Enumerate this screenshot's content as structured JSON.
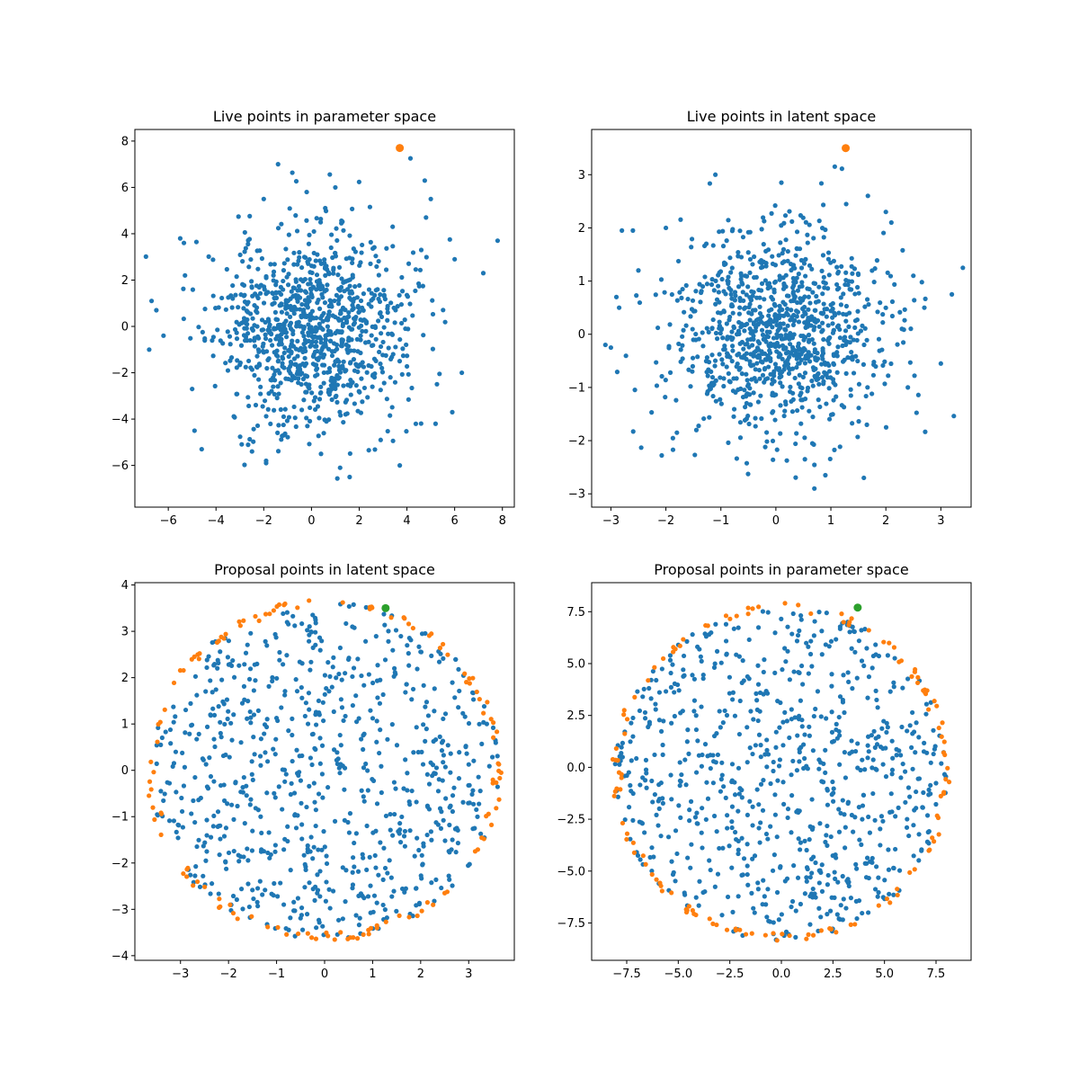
{
  "figure": {
    "width": 1200,
    "height": 1200
  },
  "chart_data": [
    {
      "type": "scatter",
      "title": "Live points in parameter space",
      "xlabel": "",
      "ylabel": "",
      "xlim": [
        -7.4,
        8.5
      ],
      "ylim": [
        -7.8,
        8.5
      ],
      "xticks": [
        -6,
        -4,
        -2,
        0,
        2,
        4,
        6,
        8
      ],
      "yticks": [
        -6,
        -4,
        -2,
        0,
        2,
        4,
        6,
        8
      ],
      "grid": false,
      "cloud": {
        "count": 1000,
        "sigma_x": 2.0,
        "sigma_y": 2.1,
        "seed": 11,
        "color": "#1f77b4"
      },
      "series": [
        {
          "color": "#1f77b4",
          "x": [
            -6.7,
            -6.5,
            -6.2,
            -6.8,
            -5.5,
            -5.3,
            -5.0,
            -4.9,
            -4.6,
            7.8,
            7.2,
            6.0,
            6.3,
            5.9,
            5.0,
            5.2,
            4.8,
            4.6,
            1.2,
            1.0,
            -0.2,
            -2.0,
            -1.9,
            1.6,
            2.9,
            3.7,
            -1.4,
            -1.9,
            0.4
          ],
          "y": [
            1.1,
            0.7,
            -0.4,
            -1.0,
            3.8,
            2.2,
            -2.7,
            -4.5,
            -5.3,
            3.7,
            2.3,
            2.9,
            -2.0,
            -3.7,
            5.5,
            -4.2,
            4.7,
            3.3,
            -6.1,
            6.0,
            5.8,
            5.5,
            -5.8,
            -6.5,
            -4.9,
            -6.0,
            7.0,
            -5.9,
            -5.5
          ]
        },
        {
          "color": "#ff7f0e",
          "x": [
            3.7
          ],
          "y": [
            7.7
          ]
        }
      ]
    },
    {
      "type": "scatter",
      "title": "Live points in latent space",
      "xlabel": "",
      "ylabel": "",
      "xlim": [
        -3.35,
        3.55
      ],
      "ylim": [
        -3.25,
        3.85
      ],
      "xticks": [
        -3,
        -2,
        -1,
        0,
        1,
        2,
        3
      ],
      "yticks": [
        -3,
        -2,
        -1,
        0,
        1,
        2,
        3
      ],
      "grid": false,
      "cloud": {
        "count": 1000,
        "sigma_x": 0.95,
        "sigma_y": 0.95,
        "seed": 23,
        "color": "#1f77b4"
      },
      "series": [
        {
          "color": "#1f77b4",
          "x": [
            -3.0,
            -2.9,
            -2.85,
            -3.1,
            -2.8,
            -2.6,
            -2.5,
            -2.0,
            -1.8,
            3.4,
            3.2,
            3.0,
            2.7,
            2.5,
            2.4,
            -1.1,
            0.1,
            1.6,
            0.9,
            0.7,
            2.0,
            2.1
          ],
          "y": [
            -0.25,
            0.7,
            0.5,
            -0.2,
            1.95,
            1.95,
            1.2,
            2.0,
            -1.85,
            1.25,
            0.75,
            -0.55,
            0.5,
            1.1,
            -1.0,
            3.0,
            2.85,
            -2.7,
            -2.65,
            -2.9,
            2.3,
            2.1
          ]
        },
        {
          "color": "#ff7f0e",
          "x": [
            1.27
          ],
          "y": [
            3.5
          ]
        }
      ]
    },
    {
      "type": "scatter",
      "title": "Proposal points in latent space",
      "xlabel": "",
      "ylabel": "",
      "xlim": [
        -3.95,
        3.95
      ],
      "ylim": [
        -4.1,
        4.05
      ],
      "xticks": [
        -3,
        -2,
        -1,
        0,
        1,
        2,
        3
      ],
      "yticks": [
        -4,
        -3,
        -2,
        -1,
        0,
        1,
        2,
        3,
        4
      ],
      "grid": false,
      "disk": {
        "radius": 3.7,
        "cx": 0,
        "cy": 0,
        "count": 760,
        "edge_count": 130,
        "edge_band": 0.2,
        "seed": 37,
        "inner_color": "#1f77b4",
        "edge_color": "#ff7f0e"
      },
      "series": [
        {
          "color": "#2ca02c",
          "x": [
            1.27
          ],
          "y": [
            3.5
          ]
        }
      ]
    },
    {
      "type": "scatter",
      "title": "Proposal points in parameter space",
      "xlabel": "",
      "ylabel": "",
      "xlim": [
        -9.2,
        9.2
      ],
      "ylim": [
        -9.3,
        8.9
      ],
      "xticks": [
        -7.5,
        -5.0,
        -2.5,
        0.0,
        2.5,
        5.0,
        7.5
      ],
      "yticks": [
        -7.5,
        -5.0,
        -2.5,
        0.0,
        2.5,
        5.0,
        7.5
      ],
      "grid": false,
      "disk": {
        "radius": 8.2,
        "cx": 0,
        "cy": -0.25,
        "count": 760,
        "edge_count": 130,
        "edge_band": 0.45,
        "seed": 53,
        "inner_color": "#1f77b4",
        "edge_color": "#ff7f0e"
      },
      "series": [
        {
          "color": "#2ca02c",
          "x": [
            3.7
          ],
          "y": [
            7.7
          ]
        }
      ]
    }
  ]
}
